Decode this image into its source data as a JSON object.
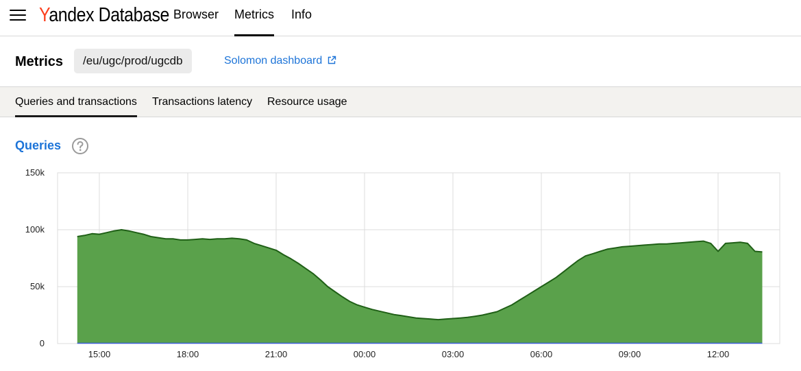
{
  "app": {
    "logo_first_letter": "Y",
    "logo_rest": "andex Database",
    "nav": [
      {
        "label": "Browser"
      },
      {
        "label": "Metrics"
      },
      {
        "label": "Info"
      }
    ],
    "active_nav": "Metrics"
  },
  "header": {
    "title": "Metrics",
    "path": "/eu/ugc/prod/ugcdb",
    "link_label": "Solomon dashboard"
  },
  "tabs": [
    {
      "label": "Queries and transactions"
    },
    {
      "label": "Transactions latency"
    },
    {
      "label": "Resource usage"
    }
  ],
  "active_tab": "Queries and transactions",
  "section": {
    "title": "Queries",
    "help_icon": "question-circle-icon"
  },
  "colors": {
    "accent": "#1d74d8",
    "logo_red": "#fc3f1d",
    "area_fill": "#5aa14b",
    "area_line": "#1f5f16",
    "baseline": "#3c5fd8"
  },
  "chart_data": {
    "type": "area",
    "title": "",
    "xlabel": "",
    "ylabel": "",
    "ylim": [
      0,
      150000
    ],
    "y_ticks": [
      {
        "value": 0,
        "label": "0"
      },
      {
        "value": 50000,
        "label": "50k"
      },
      {
        "value": 100000,
        "label": "100k"
      },
      {
        "value": 150000,
        "label": "150k"
      }
    ],
    "x_ticks": [
      "15:00",
      "18:00",
      "21:00",
      "00:00",
      "03:00",
      "06:00",
      "09:00",
      "12:00"
    ],
    "grid": true,
    "series": [
      {
        "x": [
          "14:15",
          "14:30",
          "14:45",
          "15:00",
          "15:15",
          "15:30",
          "15:45",
          "16:00",
          "16:15",
          "16:30",
          "16:45",
          "17:00",
          "17:15",
          "17:30",
          "17:45",
          "18:00",
          "18:15",
          "18:30",
          "18:45",
          "19:00",
          "19:15",
          "19:30",
          "19:45",
          "20:00",
          "20:15",
          "20:30",
          "20:45",
          "21:00",
          "21:15",
          "21:30",
          "21:45",
          "22:00",
          "22:15",
          "22:30",
          "22:45",
          "23:00",
          "23:15",
          "23:30",
          "23:45",
          "00:00",
          "00:15",
          "00:30",
          "00:45",
          "01:00",
          "01:15",
          "01:30",
          "01:45",
          "02:00",
          "02:15",
          "02:30",
          "02:45",
          "03:00",
          "03:15",
          "03:30",
          "03:45",
          "04:00",
          "04:15",
          "04:30",
          "04:45",
          "05:00",
          "05:15",
          "05:30",
          "05:45",
          "06:00",
          "06:15",
          "06:30",
          "06:45",
          "07:00",
          "07:15",
          "07:30",
          "07:45",
          "08:00",
          "08:15",
          "08:30",
          "08:45",
          "09:00",
          "09:15",
          "09:30",
          "09:45",
          "10:00",
          "10:15",
          "10:30",
          "10:45",
          "11:00",
          "11:15",
          "11:30",
          "11:45",
          "12:00",
          "12:15",
          "12:30",
          "12:45",
          "13:00",
          "13:15",
          "13:30"
        ],
        "values": [
          94000,
          95000,
          96500,
          96000,
          97500,
          99000,
          100000,
          99000,
          97500,
          96000,
          94000,
          93000,
          92000,
          92000,
          91000,
          91000,
          91500,
          92000,
          91500,
          92000,
          92000,
          92500,
          92000,
          91000,
          88000,
          86000,
          84000,
          82000,
          78000,
          74500,
          70500,
          66000,
          61500,
          56000,
          50000,
          45500,
          41000,
          37000,
          34000,
          32000,
          30000,
          28500,
          27000,
          25500,
          24500,
          23500,
          22500,
          22000,
          21500,
          21000,
          21500,
          22000,
          22500,
          23000,
          24000,
          25000,
          26500,
          28000,
          31000,
          34000,
          38000,
          42000,
          46000,
          50000,
          54000,
          58000,
          63000,
          68000,
          73000,
          77000,
          79000,
          81000,
          83000,
          84000,
          85000,
          85500,
          86000,
          86500,
          87000,
          87500,
          87500,
          88000,
          88500,
          89000,
          89500,
          90000,
          88000,
          81000,
          88000,
          88500,
          89000,
          88000,
          81000,
          80500
        ]
      }
    ]
  }
}
